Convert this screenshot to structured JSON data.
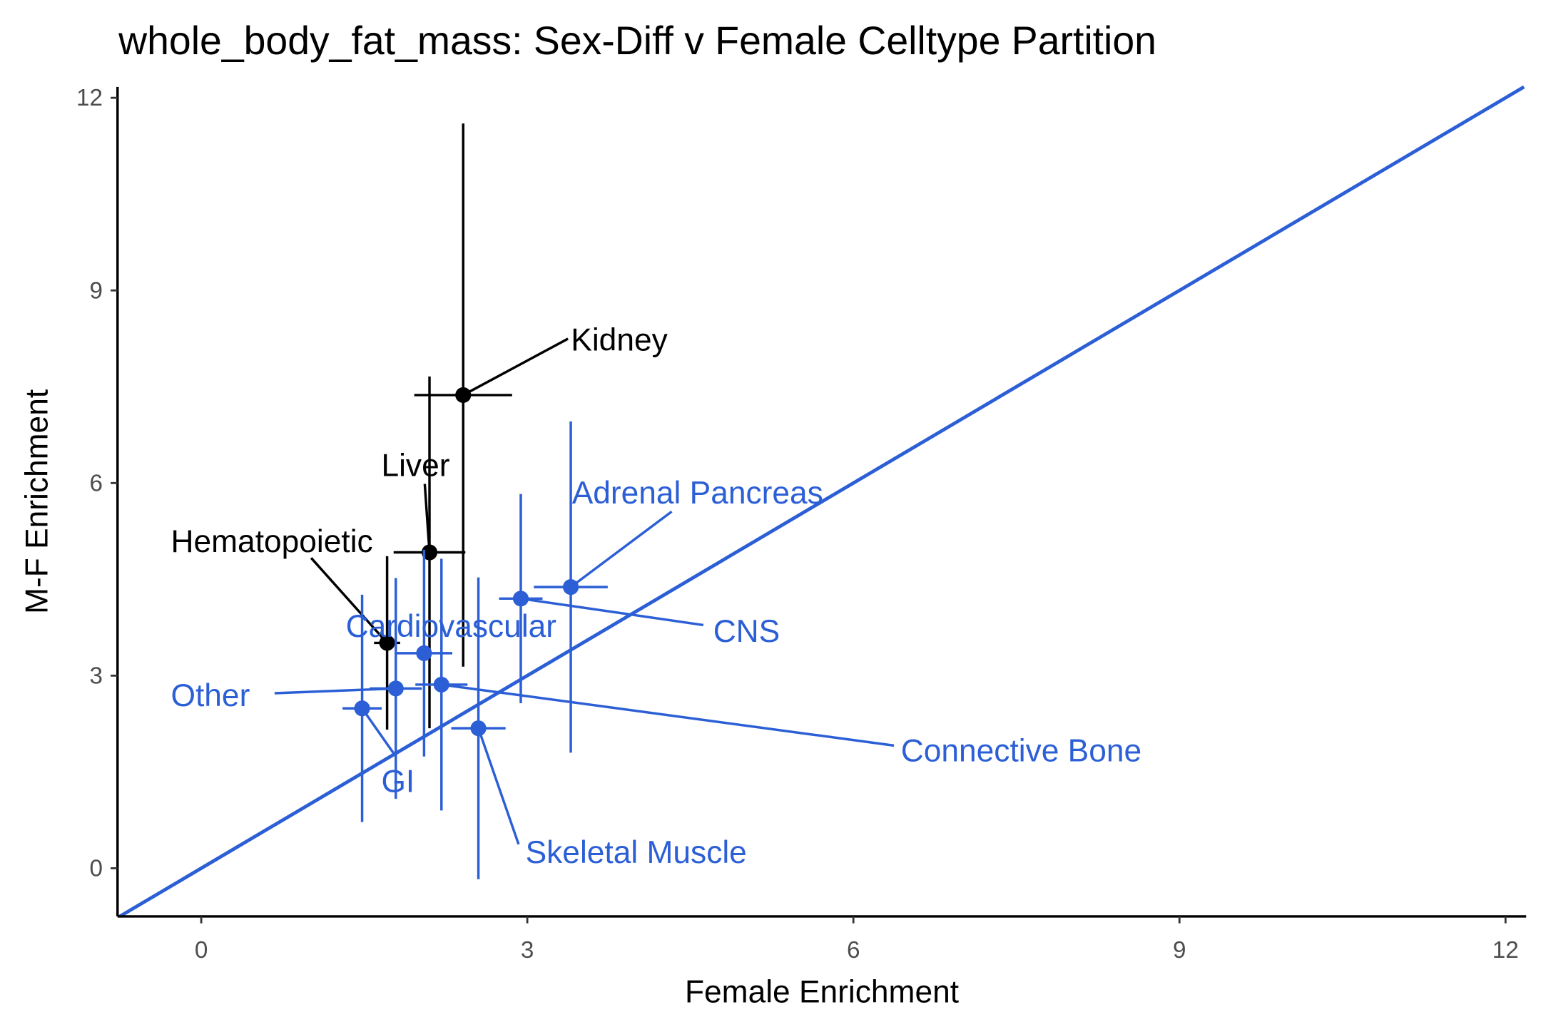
{
  "chart_data": {
    "type": "scatter",
    "title": "whole_body_fat_mass: Sex-Diff v Female Celltype Partition",
    "x_label": "Female Enrichment",
    "y_label": "M-F Enrichment",
    "xlim": [
      -0.77,
      12.19
    ],
    "ylim": [
      -0.75,
      12.17
    ],
    "xticks": [
      0,
      3,
      6,
      9,
      12
    ],
    "yticks": [
      0,
      3,
      6,
      9,
      12
    ],
    "identity_line": true,
    "identity_color": "#2c5fd6",
    "points": [
      {
        "name": "Kidney",
        "x": 2.41,
        "y": 7.37,
        "xerr": 0.45,
        "yerr": 4.23,
        "color": "#000000"
      },
      {
        "name": "Liver",
        "x": 2.1,
        "y": 4.92,
        "xerr": 0.33,
        "yerr": 2.74,
        "color": "#000000"
      },
      {
        "name": "Hematopoietic",
        "x": 1.71,
        "y": 3.51,
        "xerr": 0.12,
        "yerr": 1.35,
        "color": "#000000"
      },
      {
        "name": "Adrenal Pancreas",
        "x": 3.4,
        "y": 4.38,
        "xerr": 0.34,
        "yerr": 2.58,
        "color": "#2c5fd6"
      },
      {
        "name": "CNS",
        "x": 2.94,
        "y": 4.2,
        "xerr": 0.2,
        "yerr": 1.63,
        "color": "#2c5fd6"
      },
      {
        "name": "Cardiovascular",
        "x": 2.05,
        "y": 3.35,
        "xerr": 0.26,
        "yerr": 1.61,
        "color": "#2c5fd6"
      },
      {
        "name": "Connective Bone",
        "x": 2.21,
        "y": 2.86,
        "xerr": 0.24,
        "yerr": 1.96,
        "color": "#2c5fd6"
      },
      {
        "name": "Other",
        "x": 1.79,
        "y": 2.8,
        "xerr": 0.24,
        "yerr": 1.72,
        "color": "#2c5fd6"
      },
      {
        "name": "GI",
        "x": 1.48,
        "y": 2.49,
        "xerr": 0.18,
        "yerr": 1.77,
        "color": "#2c5fd6"
      },
      {
        "name": "Skeletal Muscle",
        "x": 2.55,
        "y": 2.18,
        "xerr": 0.25,
        "yerr": 2.35,
        "color": "#2c5fd6"
      }
    ]
  }
}
